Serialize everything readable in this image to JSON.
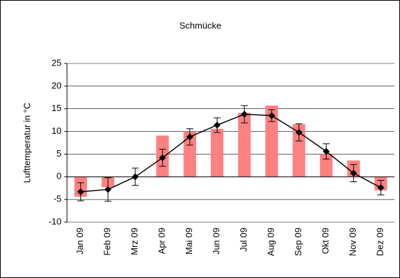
{
  "chart_data": {
    "type": "bar_line_error",
    "title": "Schmücke",
    "y_label": "Lufttemperatur in °C",
    "categories": [
      "Jan 09",
      "Feb 09",
      "Mrz 09",
      "Apr 09",
      "Mai 09",
      "Jun 09",
      "Jul 09",
      "Aug 09",
      "Sep 09",
      "Okt 09",
      "Nov 09",
      "Dez 09"
    ],
    "series": [
      {
        "type": "bar",
        "color": "#ff8080",
        "values": [
          -4.4,
          -2.3,
          0,
          9.1,
          10,
          10.6,
          14.1,
          15.7,
          11.6,
          5,
          3.6,
          -3
        ]
      },
      {
        "type": "line",
        "color": "#000000",
        "values": [
          -3.3,
          -2.8,
          0,
          4.2,
          8.8,
          11.4,
          13.8,
          13.5,
          9.8,
          5.6,
          0.8,
          -2.4
        ],
        "errors": [
          2,
          2.6,
          1.9,
          1.9,
          1.8,
          1.6,
          1.9,
          1.3,
          1.9,
          1.7,
          1.9,
          1.6
        ]
      }
    ],
    "ylim": [
      -10,
      25
    ],
    "yticks": [
      -10,
      -5,
      0,
      5,
      10,
      15,
      20,
      25
    ],
    "grid": true
  }
}
